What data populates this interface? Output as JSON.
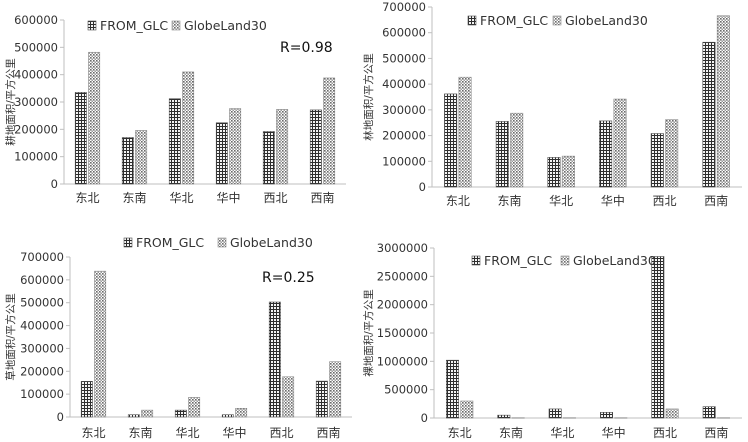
{
  "chart_data": [
    {
      "type": "bar",
      "ylabel": "耕地面积/平方公里",
      "categories": [
        "东北",
        "东南",
        "华北",
        "华中",
        "西北",
        "西南"
      ],
      "series": [
        {
          "name": "FROM_GLC",
          "values": [
            335000,
            170000,
            312000,
            224000,
            192000,
            271000
          ]
        },
        {
          "name": "GlobeLand30",
          "values": [
            482000,
            196000,
            410000,
            276000,
            273000,
            388000
          ]
        }
      ],
      "ylim": [
        0,
        600000
      ],
      "yticks": [
        0,
        100000,
        200000,
        300000,
        400000,
        500000,
        600000
      ],
      "yticklabels": [
        "0",
        "100000",
        "200000",
        "300000",
        "400000",
        "500000",
        "600000"
      ],
      "annotation": "R=0.98"
    },
    {
      "type": "bar",
      "ylabel": "林地面积/平方公里",
      "categories": [
        "东北",
        "东南",
        "华北",
        "华中",
        "西北",
        "西南"
      ],
      "series": [
        {
          "name": "FROM_GLC",
          "values": [
            362000,
            255000,
            115000,
            257000,
            208000,
            563000
          ]
        },
        {
          "name": "GlobeLand30",
          "values": [
            427000,
            287000,
            120000,
            342000,
            262000,
            666000
          ]
        }
      ],
      "ylim": [
        0,
        700000
      ],
      "yticks": [
        0,
        100000,
        200000,
        300000,
        400000,
        500000,
        600000,
        700000
      ],
      "yticklabels": [
        "0",
        "100000",
        "200000",
        "300000",
        "400000",
        "500000",
        "600000",
        "700000"
      ],
      "annotation": ""
    },
    {
      "type": "bar",
      "ylabel": "草地面积/平方公里",
      "categories": [
        "东北",
        "东南",
        "华北",
        "华中",
        "西北",
        "西南"
      ],
      "series": [
        {
          "name": "FROM_GLC",
          "values": [
            156000,
            10000,
            30000,
            10000,
            503000,
            157000
          ]
        },
        {
          "name": "GlobeLand30",
          "values": [
            638000,
            30000,
            86000,
            38000,
            176000,
            242000
          ]
        }
      ],
      "ylim": [
        0,
        700000
      ],
      "yticks": [
        0,
        100000,
        200000,
        300000,
        400000,
        500000,
        600000,
        700000
      ],
      "yticklabels": [
        "0",
        "100000",
        "200000",
        "300000",
        "400000",
        "500000",
        "600000",
        "700000"
      ],
      "annotation": "R=0.25"
    },
    {
      "type": "bar",
      "ylabel": "裸地面积/平方公里",
      "categories": [
        "东北",
        "东南",
        "华北",
        "华中",
        "西北",
        "西南"
      ],
      "series": [
        {
          "name": "FROM_GLC",
          "values": [
            1020000,
            50000,
            160000,
            100000,
            2850000,
            200000
          ]
        },
        {
          "name": "GlobeLand30",
          "values": [
            300000,
            5000,
            5000,
            5000,
            160000,
            5000
          ]
        }
      ],
      "ylim": [
        0,
        3000000
      ],
      "yticks": [
        0,
        500000,
        1000000,
        1500000,
        2000000,
        2500000,
        3000000
      ],
      "yticklabels": [
        "0",
        "500000",
        "1000000",
        "1500000",
        "2000000",
        "2500000",
        "3000000"
      ],
      "annotation": ""
    }
  ],
  "colors": {
    "axis": "#bfbfbf",
    "text": "#333333",
    "from_glc_fill": "#4d4d4d",
    "globeland_fill": "#8c8c8c"
  }
}
